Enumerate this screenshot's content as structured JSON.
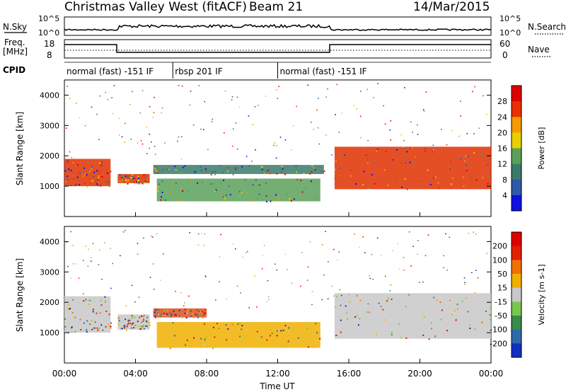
{
  "header": {
    "title": "Christmas Valley West (fitACF)",
    "beam": "Beam 21",
    "date": "14/Mar/2015"
  },
  "panels": {
    "nsky": {
      "label": "N.Sky",
      "tick_top": "10^5",
      "tick_bottom": "10^0",
      "right_label": "N.Search"
    },
    "freq": {
      "label_line1": "Freq.",
      "label_line2": "[MHz]",
      "tick_top": "18",
      "tick_bottom": "8",
      "right_tick_top": "60",
      "right_tick_bottom": "0",
      "right_label": "Nave"
    },
    "cpid": {
      "label": "CPID",
      "segments": [
        {
          "label": "normal (fast) -151 IF",
          "start": 0,
          "end": 6.1
        },
        {
          "label": "rbsp 201 IF",
          "start": 6.1,
          "end": 12.0
        },
        {
          "label": "normal (fast) -151 IF",
          "start": 12.0,
          "end": 24
        }
      ]
    }
  },
  "chart_data": [
    {
      "type": "heatmap",
      "name": "power",
      "ylabel": "Slant Range [km]",
      "ylim": [
        0,
        4500
      ],
      "yticks": [
        "1000",
        "2000",
        "3000",
        "4000"
      ],
      "colorbar": {
        "label": "Power [dB]",
        "ticks": [
          "4",
          "8",
          "12",
          "16",
          "20",
          "24",
          "28"
        ],
        "colors": [
          "#1010e0",
          "#2e5aa8",
          "#3a7a6a",
          "#5aa05a",
          "#e8d000",
          "#f59a00",
          "#e83000",
          "#e00000"
        ]
      },
      "bands": [
        {
          "t0": 0.0,
          "t1": 2.6,
          "r0": 1000,
          "r1": 1900,
          "color": "#e03000"
        },
        {
          "t0": 3.0,
          "t1": 4.8,
          "r0": 1100,
          "r1": 1400,
          "color": "#e03000"
        },
        {
          "t0": 5.0,
          "t1": 14.6,
          "r0": 1400,
          "r1": 1700,
          "color": "#3a7a6a"
        },
        {
          "t0": 5.2,
          "t1": 14.4,
          "r0": 500,
          "r1": 1250,
          "color": "#5aa05a"
        },
        {
          "t0": 15.2,
          "t1": 24.0,
          "r0": 900,
          "r1": 2300,
          "color": "#e03000"
        }
      ]
    },
    {
      "type": "heatmap",
      "name": "velocity",
      "ylabel": "Slant Range [km]",
      "ylim": [
        0,
        4500
      ],
      "yticks": [
        "1000",
        "2000",
        "3000",
        "4000"
      ],
      "colorbar": {
        "label": "Velocity [m s-1]",
        "ticks": [
          "200",
          "100",
          "50",
          "15",
          "-15",
          "-50",
          "-100",
          "-200"
        ],
        "colors": [
          "#1030c0",
          "#2e6aa8",
          "#3a8a4a",
          "#78c850",
          "#c8c8c8",
          "#f0b000",
          "#f07000",
          "#e02000",
          "#e00000"
        ]
      },
      "bands": [
        {
          "t0": 0.0,
          "t1": 2.6,
          "r0": 1000,
          "r1": 2200,
          "color": "#c8c8c8"
        },
        {
          "t0": 3.0,
          "t1": 4.8,
          "r0": 1100,
          "r1": 1600,
          "color": "#c8c8c8"
        },
        {
          "t0": 5.0,
          "t1": 8.0,
          "r0": 1500,
          "r1": 1800,
          "color": "#e05020"
        },
        {
          "t0": 5.2,
          "t1": 14.4,
          "r0": 500,
          "r1": 1350,
          "color": "#f0b000"
        },
        {
          "t0": 15.2,
          "t1": 24.0,
          "r0": 800,
          "r1": 2300,
          "color": "#c8c8c8"
        }
      ]
    }
  ],
  "xaxis": {
    "label": "Time UT",
    "ticks": [
      "00:00",
      "04:00",
      "08:00",
      "12:00",
      "16:00",
      "20:00",
      "00:00"
    ]
  }
}
